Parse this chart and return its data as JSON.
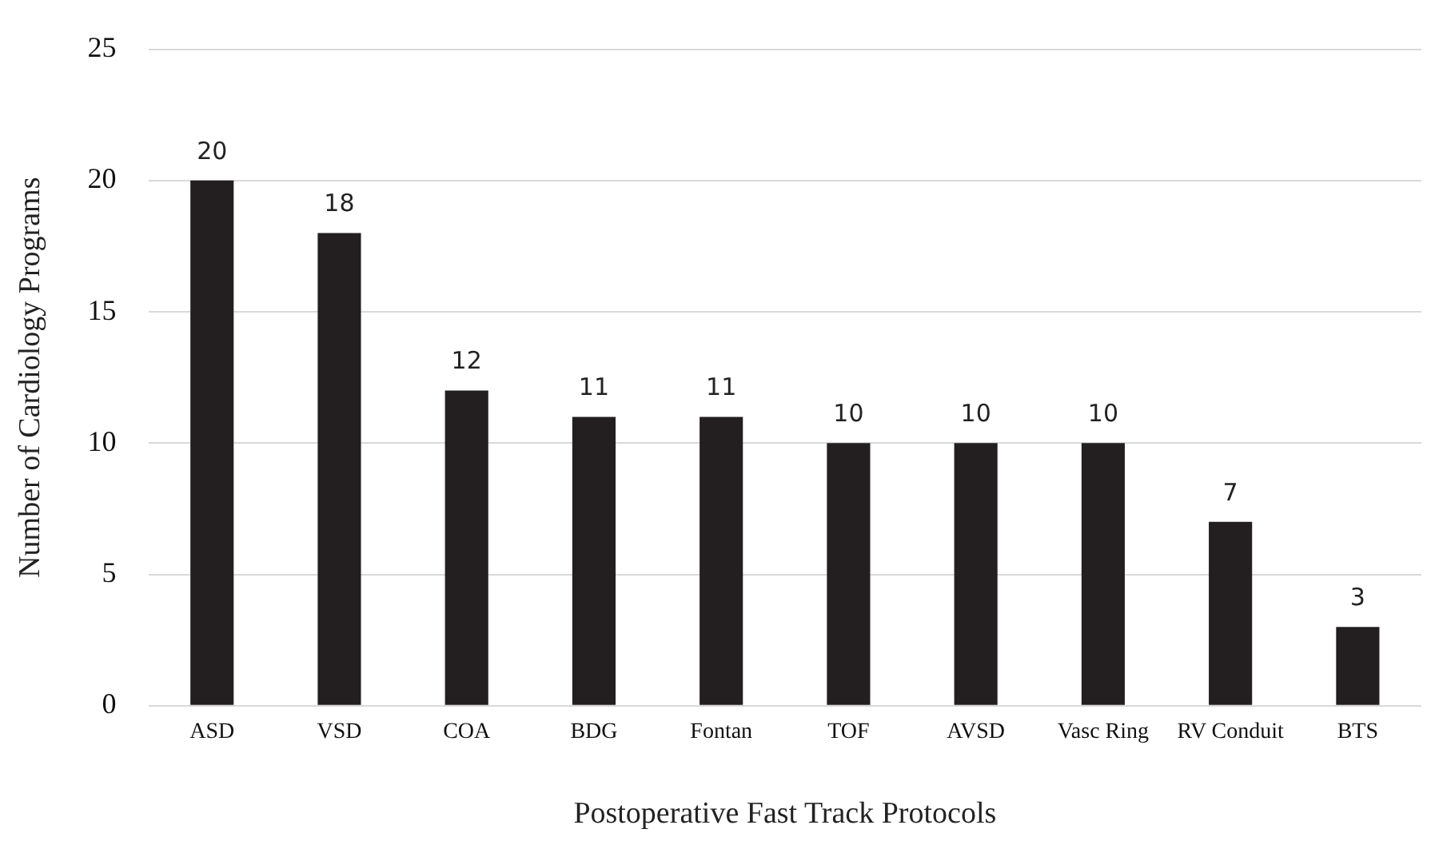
{
  "chart_data": {
    "type": "bar",
    "xlabel": "Postoperative Fast Track Protocols",
    "ylabel": "Number of Cardiology Programs",
    "categories": [
      "ASD",
      "VSD",
      "COA",
      "BDG",
      "Fontan",
      "TOF",
      "AVSD",
      "Vasc Ring",
      "RV Conduit",
      "BTS"
    ],
    "values": [
      20,
      18,
      12,
      11,
      11,
      10,
      10,
      10,
      7,
      3
    ],
    "color": "#231f20",
    "ylim": [
      0,
      25
    ],
    "yticks": [
      0,
      5,
      10,
      15,
      20,
      25
    ],
    "grid": "y",
    "data_labels": true,
    "legend": false
  }
}
